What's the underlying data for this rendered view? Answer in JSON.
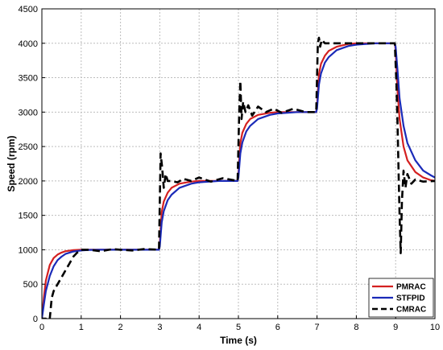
{
  "chart_data": {
    "type": "line",
    "title": "",
    "xlabel": "Time (s)",
    "ylabel": "Speed (rpm)",
    "xlim": [
      0,
      10
    ],
    "ylim": [
      0,
      4500
    ],
    "xticks": [
      0,
      1,
      2,
      3,
      4,
      5,
      6,
      7,
      8,
      9,
      10
    ],
    "yticks": [
      0,
      500,
      1000,
      1500,
      2000,
      2500,
      3000,
      3500,
      4000,
      4500
    ],
    "grid": true,
    "legend_position": "bottom-right",
    "series": [
      {
        "name": "PMRAC",
        "color": "#d42020",
        "style": "solid",
        "x": [
          0,
          0.05,
          0.1,
          0.2,
          0.3,
          0.4,
          0.5,
          0.6,
          0.8,
          1.0,
          1.5,
          2.0,
          2.5,
          2.98,
          3.0,
          3.05,
          3.1,
          3.2,
          3.3,
          3.5,
          3.8,
          4.0,
          4.5,
          4.98,
          5.0,
          5.05,
          5.1,
          5.2,
          5.3,
          5.5,
          5.8,
          6.0,
          6.5,
          6.98,
          7.0,
          7.05,
          7.1,
          7.2,
          7.3,
          7.5,
          7.8,
          8.0,
          8.5,
          8.98,
          9.0,
          9.05,
          9.1,
          9.2,
          9.3,
          9.5,
          9.7,
          9.9,
          10.0
        ],
        "y": [
          0,
          300,
          550,
          780,
          880,
          930,
          960,
          980,
          995,
          1000,
          1000,
          1000,
          1000,
          1000,
          1100,
          1550,
          1700,
          1830,
          1900,
          1960,
          1990,
          2000,
          2000,
          2000,
          2100,
          2550,
          2700,
          2830,
          2900,
          2960,
          2990,
          3000,
          3000,
          3000,
          3100,
          3550,
          3700,
          3820,
          3890,
          3950,
          3990,
          4000,
          4000,
          4000,
          3900,
          3300,
          2900,
          2500,
          2300,
          2130,
          2050,
          2010,
          2000
        ]
      },
      {
        "name": "STFPID",
        "color": "#1a2ab8",
        "style": "solid",
        "x": [
          0,
          0.05,
          0.1,
          0.2,
          0.3,
          0.4,
          0.5,
          0.6,
          0.8,
          1.0,
          1.2,
          1.5,
          2.0,
          2.5,
          2.98,
          3.0,
          3.05,
          3.1,
          3.2,
          3.3,
          3.5,
          3.8,
          4.0,
          4.5,
          4.98,
          5.0,
          5.05,
          5.1,
          5.2,
          5.3,
          5.5,
          5.8,
          6.0,
          6.5,
          6.98,
          7.0,
          7.05,
          7.1,
          7.2,
          7.3,
          7.5,
          7.8,
          8.0,
          8.5,
          8.98,
          9.0,
          9.05,
          9.1,
          9.2,
          9.3,
          9.5,
          9.7,
          9.9,
          10.0
        ],
        "y": [
          0,
          200,
          400,
          620,
          760,
          850,
          900,
          940,
          975,
          990,
          998,
          1000,
          1000,
          1000,
          1000,
          1050,
          1400,
          1560,
          1720,
          1800,
          1900,
          1960,
          1980,
          2000,
          2000,
          2050,
          2400,
          2560,
          2720,
          2800,
          2900,
          2960,
          2980,
          3000,
          3000,
          3050,
          3400,
          3560,
          3720,
          3800,
          3900,
          3960,
          3980,
          4000,
          4000,
          3950,
          3600,
          3200,
          2800,
          2550,
          2300,
          2150,
          2080,
          2050
        ]
      },
      {
        "name": "CMRAC",
        "color": "#000000",
        "style": "dashed",
        "x": [
          0,
          0.1,
          0.15,
          0.2,
          0.25,
          0.3,
          0.4,
          0.5,
          0.6,
          0.7,
          0.8,
          0.9,
          1.0,
          1.2,
          1.5,
          1.8,
          2.0,
          2.3,
          2.6,
          2.98,
          3.02,
          3.06,
          3.1,
          3.15,
          3.2,
          3.3,
          3.45,
          3.6,
          3.8,
          4.0,
          4.3,
          4.6,
          4.98,
          5.02,
          5.05,
          5.08,
          5.12,
          5.18,
          5.25,
          5.35,
          5.5,
          5.7,
          5.9,
          6.1,
          6.4,
          6.7,
          6.98,
          7.02,
          7.05,
          7.08,
          7.12,
          7.2,
          7.3,
          7.5,
          8.0,
          8.5,
          8.98,
          9.02,
          9.05,
          9.08,
          9.1,
          9.13,
          9.16,
          9.2,
          9.25,
          9.3,
          9.4,
          9.5,
          9.7,
          10.0
        ],
        "y": [
          0,
          0,
          -50,
          0,
          300,
          400,
          500,
          600,
          700,
          800,
          900,
          960,
          1000,
          1000,
          980,
          1010,
          1000,
          990,
          1010,
          1000,
          2400,
          2200,
          1900,
          2100,
          2000,
          2000,
          1980,
          2030,
          2000,
          2050,
          1990,
          2040,
          2000,
          3000,
          3450,
          2900,
          3150,
          3000,
          3100,
          2950,
          3080,
          3000,
          3050,
          2990,
          3050,
          3000,
          3000,
          4000,
          4080,
          3950,
          4050,
          4000,
          4000,
          4000,
          4000,
          4000,
          4000,
          3400,
          2800,
          2000,
          1500,
          950,
          1700,
          2150,
          1900,
          2100,
          1960,
          2020,
          1990,
          2000
        ]
      }
    ]
  }
}
